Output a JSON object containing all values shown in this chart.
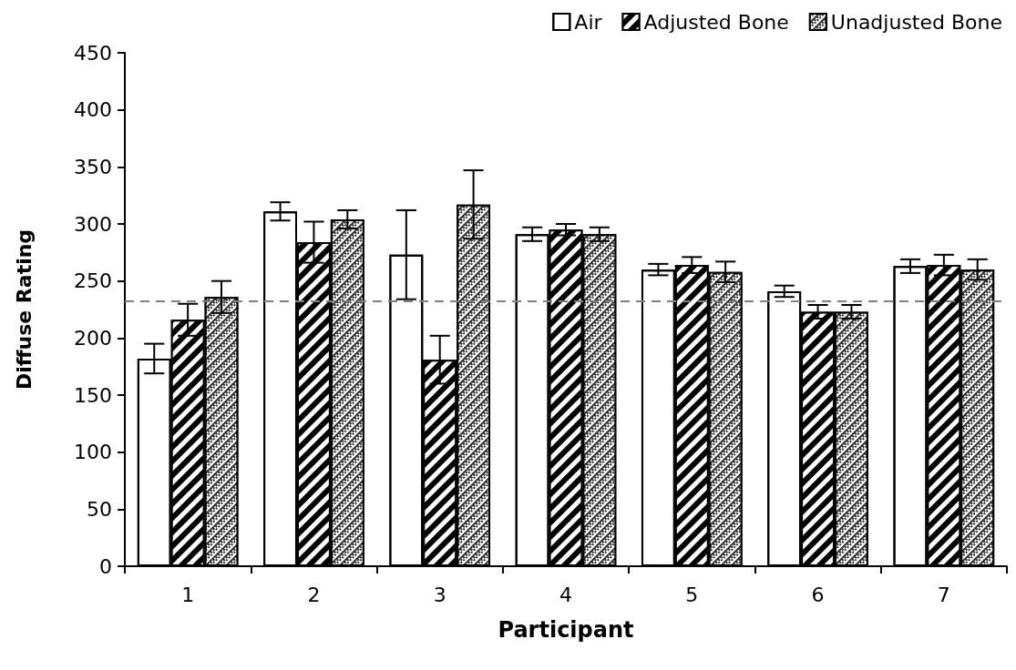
{
  "chart_data": {
    "type": "bar",
    "xlabel": "Participant",
    "ylabel": "Diffuse Rating",
    "categories": [
      "1",
      "2",
      "3",
      "4",
      "5",
      "6",
      "7"
    ],
    "series": [
      {
        "name": "Air",
        "color": "#ffffff",
        "values": [
          182,
          311,
          273,
          291,
          260,
          241,
          263
        ],
        "errors": [
          13,
          8,
          39,
          6,
          5,
          5,
          6
        ]
      },
      {
        "name": "Adjusted Bone",
        "color": "#000000",
        "values": [
          216,
          284,
          181,
          295,
          264,
          223,
          264
        ],
        "errors": [
          14,
          18,
          21,
          5,
          7,
          6,
          9
        ]
      },
      {
        "name": "Unadjusted Bone",
        "color": "#333333",
        "values": [
          236,
          304,
          317,
          291,
          258,
          223,
          260
        ],
        "errors": [
          14,
          8,
          30,
          6,
          9,
          6,
          9
        ]
      }
    ],
    "ylim": [
      0,
      450
    ],
    "yticks": [
      0,
      50,
      100,
      150,
      200,
      250,
      300,
      350,
      400,
      450
    ],
    "ref_lines": [
      {
        "axis": "y",
        "value": 232,
        "color": "#808080",
        "line_style": "dashed"
      }
    ],
    "grid": false,
    "legend": "top right"
  }
}
